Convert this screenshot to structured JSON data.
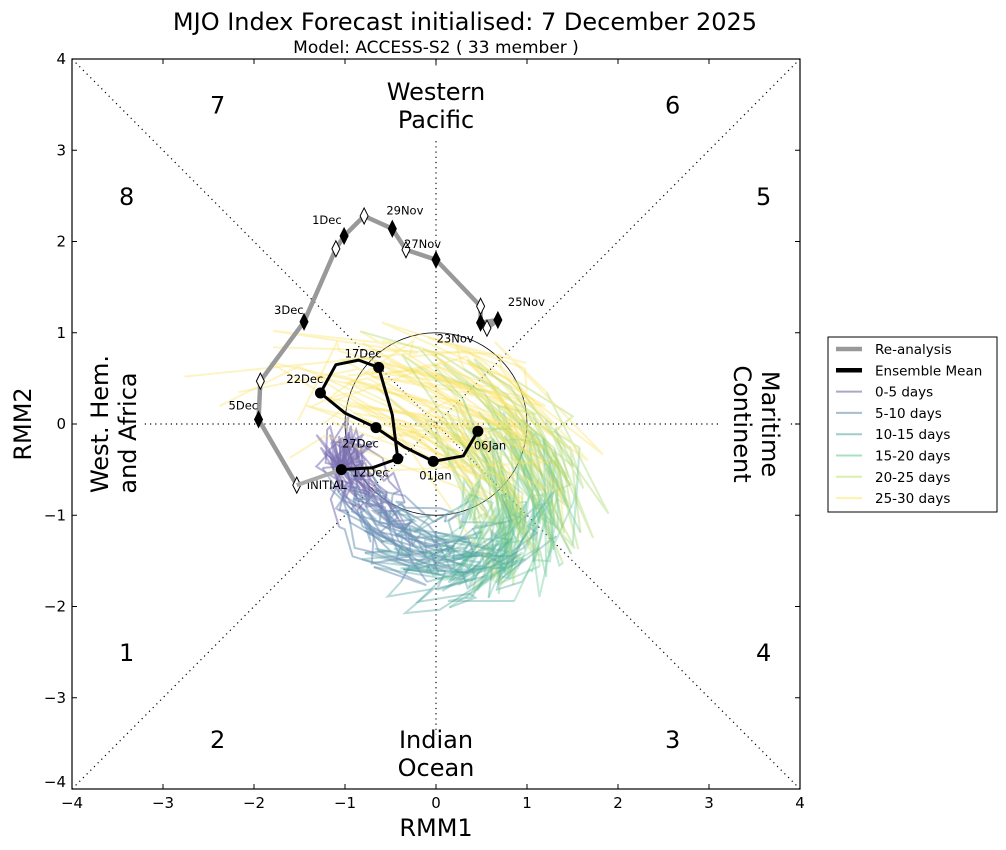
{
  "chart_data": {
    "type": "line",
    "title": "MJO Index Forecast initialised:  7  December 2025",
    "subtitle": "Model: ACCESS-S2 ( 33 member )",
    "xlabel": "RMM1",
    "ylabel": "RMM2",
    "xlim": [
      -4,
      4
    ],
    "ylim": [
      -4,
      4
    ],
    "xticks": [
      "−4",
      "−3",
      "−2",
      "−1",
      "0",
      "1",
      "2",
      "3",
      "4"
    ],
    "yticks": [
      "−4",
      "−3",
      "−2",
      "−1",
      "0",
      "1",
      "2",
      "3",
      "4"
    ],
    "xtick_values": [
      -4,
      -3,
      -2,
      -1,
      0,
      1,
      2,
      3,
      4
    ],
    "ytick_values": [
      -4,
      -3,
      -2,
      -1,
      0,
      1,
      2,
      3,
      4
    ],
    "unit_circle_radius": 1,
    "phases": [
      {
        "label": "1",
        "x": -3.4,
        "y": -2.5
      },
      {
        "label": "2",
        "x": -2.4,
        "y": -3.45
      },
      {
        "label": "3",
        "x": 2.6,
        "y": -3.45
      },
      {
        "label": "4",
        "x": 3.6,
        "y": -2.5
      },
      {
        "label": "5",
        "x": 3.6,
        "y": 2.5
      },
      {
        "label": "6",
        "x": 2.6,
        "y": 3.5
      },
      {
        "label": "7",
        "x": -2.4,
        "y": 3.5
      },
      {
        "label": "8",
        "x": -3.4,
        "y": 2.5
      }
    ],
    "regions": {
      "top": [
        "Western",
        "Pacific"
      ],
      "bottom": [
        "Indian",
        "Ocean"
      ],
      "left": [
        "West. Hem.",
        "and Africa"
      ],
      "right": [
        "Maritime",
        "Continent"
      ]
    },
    "legend": {
      "placement": "right",
      "entries": [
        {
          "label": "Re-analysis",
          "color": "#999999"
        },
        {
          "label": "Ensemble Mean",
          "color": "#000000"
        },
        {
          "label": "0-5 days",
          "color": "#b0a4c8"
        },
        {
          "label": "5-10 days",
          "color": "#a6bccf"
        },
        {
          "label": "10-15 days",
          "color": "#9fcdc8"
        },
        {
          "label": "15-20 days",
          "color": "#a8e0c0"
        },
        {
          "label": "20-25 days",
          "color": "#d8efb0"
        },
        {
          "label": "25-30 days",
          "color": "#fdf3a8"
        }
      ]
    },
    "reanalysis": {
      "points": [
        [
          0.56,
          1.05
        ],
        [
          0.68,
          1.14
        ],
        [
          0.49,
          1.11
        ],
        [
          0.49,
          1.29
        ],
        [
          0.0,
          1.8
        ],
        [
          -0.33,
          1.91
        ],
        [
          -0.48,
          2.14
        ],
        [
          -0.79,
          2.28
        ],
        [
          -1.01,
          2.06
        ],
        [
          -1.1,
          1.92
        ],
        [
          -1.45,
          1.12
        ],
        [
          -1.93,
          0.47
        ],
        [
          -1.95,
          0.05
        ],
        [
          -1.53,
          -0.67
        ]
      ],
      "labels": [
        {
          "text": "23Nov",
          "x": 0.49,
          "y": 1.11
        },
        {
          "text": "25Nov",
          "x": 0.68,
          "y": 1.14
        },
        {
          "text": "27Nov",
          "x": 0.0,
          "y": 1.8
        },
        {
          "text": "29Nov",
          "x": -0.48,
          "y": 2.14
        },
        {
          "text": "1Dec",
          "x": -1.01,
          "y": 2.06
        },
        {
          "text": "3Dec",
          "x": -1.45,
          "y": 1.12
        },
        {
          "text": "5Dec",
          "x": -1.95,
          "y": 0.05
        },
        {
          "text": "INITIAL",
          "x": -1.53,
          "y": -0.67
        }
      ],
      "filled_markers": [
        [
          0.68,
          1.14
        ],
        [
          0.49,
          1.11
        ],
        [
          0.0,
          1.8
        ],
        [
          -0.48,
          2.14
        ],
        [
          -1.01,
          2.06
        ],
        [
          -1.45,
          1.12
        ],
        [
          -1.95,
          0.05
        ]
      ],
      "hollow_markers": [
        [
          0.56,
          1.05
        ],
        [
          0.49,
          1.29
        ],
        [
          -0.33,
          1.91
        ],
        [
          -0.79,
          2.28
        ],
        [
          -1.1,
          1.92
        ],
        [
          -1.93,
          0.47
        ],
        [
          -1.53,
          -0.67
        ]
      ]
    },
    "ensemble_mean": {
      "points": [
        [
          -1.53,
          -0.67
        ],
        [
          -1.04,
          -0.5
        ],
        [
          -0.7,
          -0.48
        ],
        [
          -0.42,
          -0.38
        ],
        [
          -0.48,
          0.1
        ],
        [
          -0.63,
          0.62
        ],
        [
          -0.85,
          0.7
        ],
        [
          -1.1,
          0.65
        ],
        [
          -1.27,
          0.34
        ],
        [
          -1.0,
          0.12
        ],
        [
          -0.66,
          -0.04
        ],
        [
          -0.35,
          -0.25
        ],
        [
          -0.03,
          -0.41
        ],
        [
          0.3,
          -0.35
        ],
        [
          0.46,
          -0.08
        ]
      ],
      "labels": [
        {
          "text": "12Dec",
          "x": -0.42,
          "y": -0.38
        },
        {
          "text": "17Dec",
          "x": -0.63,
          "y": 0.62
        },
        {
          "text": "22Dec",
          "x": -1.27,
          "y": 0.34
        },
        {
          "text": "27Dec",
          "x": -0.66,
          "y": -0.04
        },
        {
          "text": "01Jan",
          "x": -0.03,
          "y": -0.41
        },
        {
          "text": "06Jan",
          "x": 0.46,
          "y": -0.08
        }
      ],
      "dots": [
        [
          -1.04,
          -0.5
        ],
        [
          -0.42,
          -0.38
        ],
        [
          -0.63,
          0.62
        ],
        [
          -1.27,
          0.34
        ],
        [
          -0.66,
          -0.04
        ],
        [
          -0.03,
          -0.41
        ],
        [
          0.46,
          -0.08
        ]
      ]
    },
    "members_note": "33 ensemble member trajectories, colored by lead time (0-30 days)",
    "member_count": 33
  }
}
